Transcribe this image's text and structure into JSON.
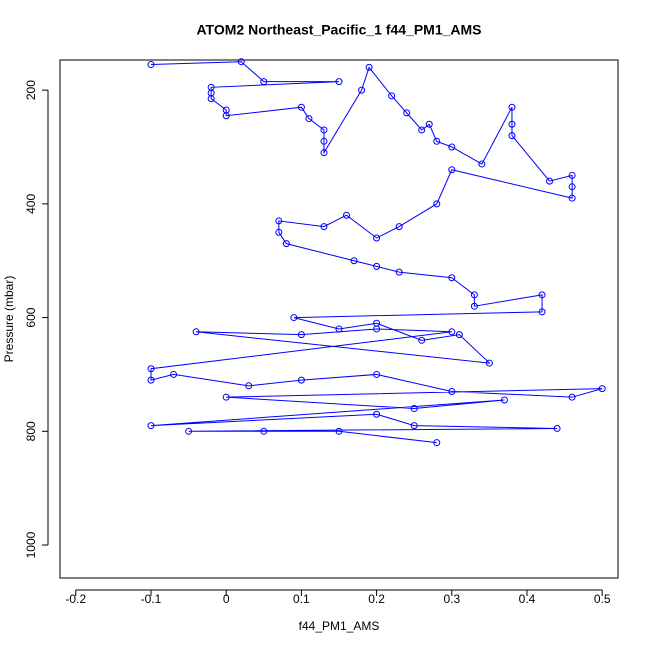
{
  "chart_data": {
    "type": "line",
    "title": "ATOM2 Northeast_Pacific_1 f44_PM1_AMS",
    "x_label": "f44_PM1_AMS",
    "y_label": "Pressure (mbar)",
    "xlim": [
      -0.221,
      0.521
    ],
    "ylim": [
      1058,
      147
    ],
    "y_reversed": true,
    "xticks": [
      -0.2,
      -0.1,
      0.0,
      0.1,
      0.2,
      0.3,
      0.4,
      0.5
    ],
    "yticks": [
      200,
      400,
      600,
      800,
      1000
    ],
    "markers": true,
    "series": [
      {
        "color": "#0000ff",
        "x": [
          -0.1,
          0.02,
          0.05,
          0.15,
          -0.02,
          -0.02,
          -0.02,
          0.0,
          0.0,
          0.1,
          0.11,
          0.13,
          0.13,
          0.13,
          0.18,
          0.19,
          0.22,
          0.24,
          0.26,
          0.27,
          0.28,
          0.3,
          0.34,
          0.38,
          0.38,
          0.38,
          0.43,
          0.46,
          0.46,
          0.46,
          0.3,
          0.28,
          0.23,
          0.2,
          0.16,
          0.13,
          0.07,
          0.07,
          0.08,
          0.17,
          0.2,
          0.23,
          0.3,
          0.33,
          0.33,
          0.42,
          0.42,
          0.09,
          0.15,
          0.2,
          0.26,
          0.31,
          0.35,
          -0.04,
          0.1,
          0.2,
          0.3,
          -0.1,
          -0.1,
          -0.07,
          0.03,
          0.1,
          0.2,
          0.3,
          0.46,
          0.5,
          0.0,
          0.25,
          0.37,
          -0.1,
          0.2,
          0.25,
          0.44,
          -0.05,
          0.05,
          0.15,
          0.28
        ],
        "values": [
          155,
          150,
          185,
          185,
          195,
          205,
          215,
          235,
          245,
          230,
          250,
          270,
          290,
          310,
          200,
          160,
          210,
          240,
          270,
          260,
          290,
          300,
          330,
          230,
          260,
          280,
          360,
          350,
          370,
          390,
          340,
          400,
          440,
          460,
          420,
          440,
          430,
          450,
          470,
          500,
          510,
          520,
          530,
          560,
          580,
          560,
          590,
          600,
          620,
          610,
          640,
          630,
          680,
          625,
          630,
          620,
          625,
          690,
          710,
          700,
          720,
          710,
          700,
          730,
          740,
          725,
          740,
          760,
          745,
          790,
          770,
          790,
          795,
          800,
          800,
          800,
          820
        ]
      }
    ]
  }
}
